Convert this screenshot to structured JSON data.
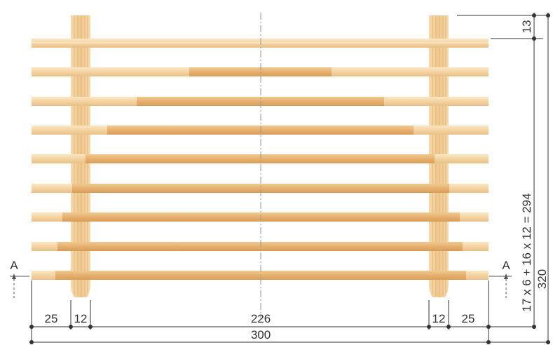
{
  "colors": {
    "wood_light": "#f4d5a6",
    "wood_mid": "#e8b87a",
    "wood_dark": "#d9a15c",
    "line": "#333333",
    "centerline": "#9a9a9a"
  },
  "dimensions": {
    "bottom": [
      "25",
      "12",
      "226",
      "12",
      "25"
    ],
    "overall_width": "300",
    "top_right": "13",
    "right_formula": "17 x 6 + 16 x 12 = 294",
    "overall_height": "320"
  },
  "section_marker": {
    "label": "A"
  },
  "boards": {
    "count": 9,
    "rows_with_inlay": 8
  }
}
